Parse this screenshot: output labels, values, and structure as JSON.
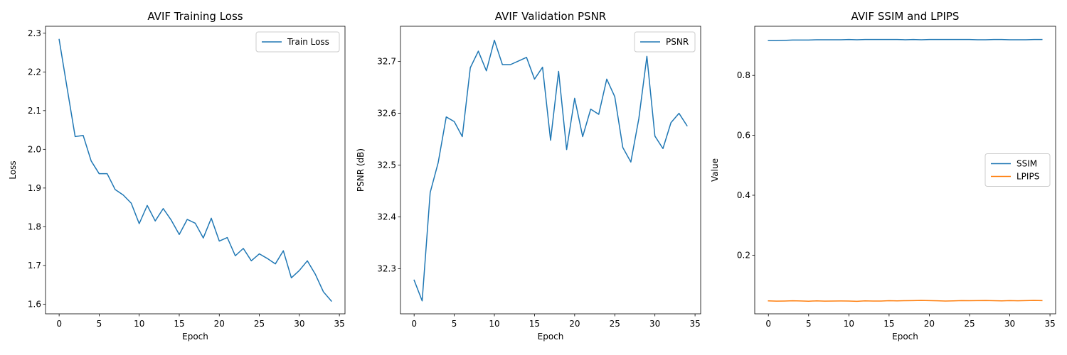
{
  "chart_data": [
    {
      "type": "line",
      "title": "AVIF Training Loss",
      "xlabel": "Epoch",
      "ylabel": "Loss",
      "xlim": [
        -1.7,
        35.7
      ],
      "ylim": [
        1.575,
        2.318
      ],
      "xticks": [
        0,
        5,
        10,
        15,
        20,
        25,
        30,
        35
      ],
      "yticks": [
        1.6,
        1.7,
        1.8,
        1.9,
        2.0,
        2.1,
        2.2,
        2.3
      ],
      "ytick_decimals": 1,
      "legend_position": "top-right",
      "series": [
        {
          "name": "Train Loss",
          "color": "#1f77b4",
          "x": [
            0,
            1,
            2,
            3,
            4,
            5,
            6,
            7,
            8,
            9,
            10,
            11,
            12,
            13,
            14,
            15,
            16,
            17,
            18,
            19,
            20,
            21,
            22,
            23,
            24,
            25,
            26,
            27,
            28,
            29,
            30,
            31,
            32,
            33,
            34
          ],
          "values": [
            2.284,
            2.158,
            2.033,
            2.036,
            1.97,
            1.937,
            1.937,
            1.896,
            1.882,
            1.861,
            1.808,
            1.855,
            1.815,
            1.847,
            1.817,
            1.78,
            1.819,
            1.809,
            1.771,
            1.822,
            1.763,
            1.772,
            1.725,
            1.744,
            1.712,
            1.73,
            1.718,
            1.704,
            1.738,
            1.668,
            1.687,
            1.712,
            1.677,
            1.632,
            1.608
          ]
        }
      ]
    },
    {
      "type": "line",
      "title": "AVIF Validation PSNR",
      "xlabel": "Epoch",
      "ylabel": "PSNR (dB)",
      "xlim": [
        -1.7,
        35.7
      ],
      "ylim": [
        32.213,
        32.768
      ],
      "xticks": [
        0,
        5,
        10,
        15,
        20,
        25,
        30,
        35
      ],
      "yticks": [
        32.3,
        32.4,
        32.5,
        32.6,
        32.7
      ],
      "ytick_decimals": 1,
      "legend_position": "top-right",
      "series": [
        {
          "name": "PSNR",
          "color": "#1f77b4",
          "x": [
            0,
            1,
            2,
            3,
            4,
            5,
            6,
            7,
            8,
            9,
            10,
            11,
            12,
            13,
            14,
            15,
            16,
            17,
            18,
            19,
            20,
            21,
            22,
            23,
            24,
            25,
            26,
            27,
            28,
            29,
            30,
            31,
            32,
            33,
            34
          ],
          "values": [
            32.278,
            32.238,
            32.447,
            32.505,
            32.593,
            32.584,
            32.555,
            32.688,
            32.72,
            32.682,
            32.741,
            32.694,
            32.694,
            32.701,
            32.708,
            32.666,
            32.689,
            32.548,
            32.681,
            32.53,
            32.629,
            32.555,
            32.608,
            32.598,
            32.666,
            32.632,
            32.534,
            32.506,
            32.59,
            32.71,
            32.556,
            32.532,
            32.582,
            32.6,
            32.576
          ]
        }
      ]
    },
    {
      "type": "line",
      "title": "AVIF SSIM and LPIPS",
      "xlabel": "Epoch",
      "ylabel": "Value",
      "xlim": [
        -1.7,
        35.7
      ],
      "ylim": [
        0.0042,
        0.964
      ],
      "xticks": [
        0,
        5,
        10,
        15,
        20,
        25,
        30,
        35
      ],
      "yticks": [
        0.2,
        0.4,
        0.6,
        0.8
      ],
      "ytick_decimals": 1,
      "legend_position": "center-right",
      "series": [
        {
          "name": "SSIM",
          "color": "#1f77b4",
          "x": [
            0,
            1,
            2,
            3,
            4,
            5,
            6,
            7,
            8,
            9,
            10,
            11,
            12,
            13,
            14,
            15,
            16,
            17,
            18,
            19,
            20,
            21,
            22,
            23,
            24,
            25,
            26,
            27,
            28,
            29,
            30,
            31,
            32,
            33,
            34
          ],
          "values": [
            0.916,
            0.916,
            0.917,
            0.918,
            0.918,
            0.918,
            0.919,
            0.919,
            0.919,
            0.919,
            0.92,
            0.919,
            0.92,
            0.92,
            0.92,
            0.92,
            0.92,
            0.919,
            0.92,
            0.919,
            0.92,
            0.92,
            0.92,
            0.92,
            0.92,
            0.92,
            0.919,
            0.919,
            0.92,
            0.92,
            0.919,
            0.919,
            0.919,
            0.92,
            0.92
          ]
        },
        {
          "name": "LPIPS",
          "color": "#ff7f0e",
          "x": [
            0,
            1,
            2,
            3,
            4,
            5,
            6,
            7,
            8,
            9,
            10,
            11,
            12,
            13,
            14,
            15,
            16,
            17,
            18,
            19,
            20,
            21,
            22,
            23,
            24,
            25,
            26,
            27,
            28,
            29,
            30,
            31,
            32,
            33,
            34
          ],
          "values": [
            0.0475,
            0.0465,
            0.047,
            0.0478,
            0.0472,
            0.0462,
            0.0476,
            0.0465,
            0.047,
            0.0472,
            0.0468,
            0.046,
            0.0474,
            0.047,
            0.0468,
            0.048,
            0.0476,
            0.048,
            0.0482,
            0.049,
            0.0484,
            0.0478,
            0.047,
            0.0476,
            0.0482,
            0.048,
            0.0484,
            0.0486,
            0.048,
            0.0476,
            0.0482,
            0.0478,
            0.0482,
            0.0488,
            0.0484
          ]
        }
      ]
    }
  ]
}
